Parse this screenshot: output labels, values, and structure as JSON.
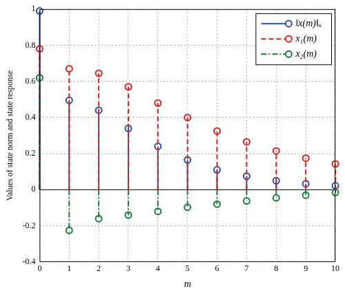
{
  "chart_data": {
    "type": "stem",
    "x_label": "m",
    "y_label": "Values of state norm and state response",
    "x": [
      0,
      1,
      2,
      3,
      4,
      5,
      6,
      7,
      8,
      9,
      10
    ],
    "series": [
      {
        "name": "‖x(m)‖ᵤ",
        "color": "#2a4fa8",
        "line_style": "solid",
        "marker": "circle",
        "values": [
          0.99,
          0.495,
          0.44,
          0.34,
          0.24,
          0.165,
          0.11,
          0.075,
          0.05,
          0.033,
          0.022
        ]
      },
      {
        "name": "x₁(m)",
        "color": "#e02020",
        "line_style": "dashed",
        "marker": "circle",
        "values": [
          0.78,
          0.67,
          0.645,
          0.57,
          0.48,
          0.4,
          0.325,
          0.265,
          0.215,
          0.175,
          0.143
        ]
      },
      {
        "name": "x₂(m)",
        "color": "#1a7a3a",
        "line_style": "dashdot",
        "marker": "circle",
        "values": [
          0.62,
          -0.225,
          -0.16,
          -0.14,
          -0.12,
          -0.097,
          -0.08,
          -0.062,
          -0.045,
          -0.03,
          -0.015
        ]
      }
    ],
    "xlim": [
      0,
      10
    ],
    "xticks": [
      0,
      1,
      2,
      3,
      4,
      5,
      6,
      7,
      8,
      9,
      10
    ],
    "ylim": [
      -0.4,
      1
    ],
    "yticks": [
      -0.4,
      -0.2,
      0,
      0.2,
      0.4,
      0.6,
      0.8,
      1
    ],
    "grid": true,
    "legend": "top-right"
  }
}
